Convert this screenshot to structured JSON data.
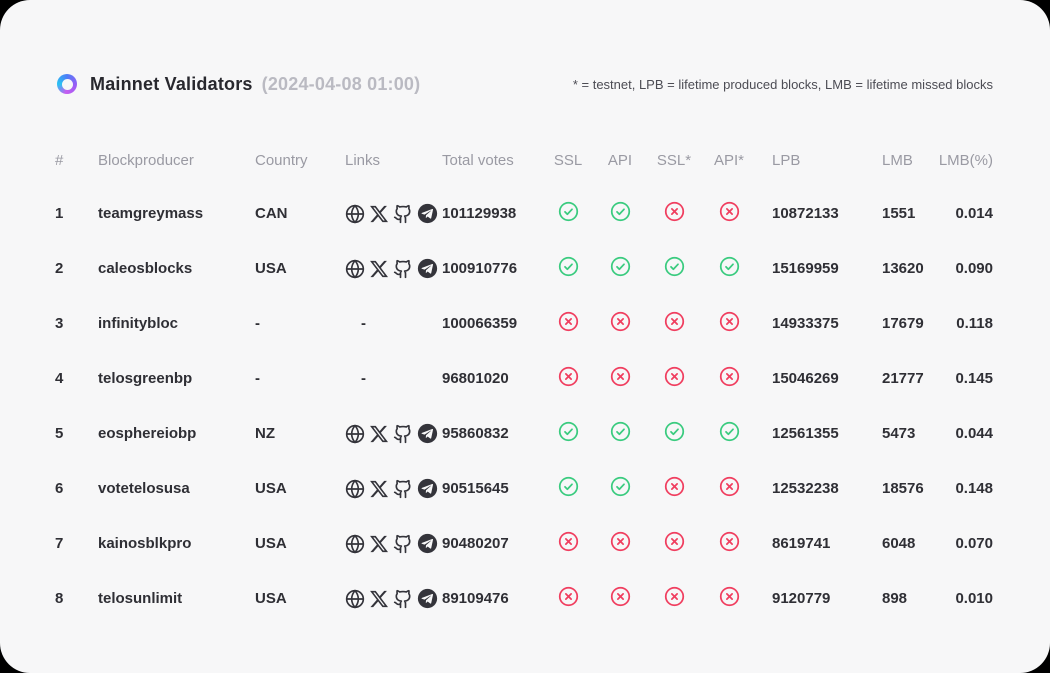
{
  "page": {
    "background": "#000000",
    "card_background": "#f7f7f8"
  },
  "header": {
    "logo_icon": "gradient-ring-icon",
    "title": "Mainnet Validators",
    "timestamp": "(2024-04-08 01:00)",
    "legend": "* = testnet, LPB = lifetime produced blocks, LMB = lifetime missed blocks"
  },
  "table": {
    "columns": [
      "#",
      "Blockproducer",
      "Country",
      "Links",
      "Total votes",
      "SSL",
      "API",
      "SSL*",
      "API*",
      "LPB",
      "LMB",
      "LMB(%)"
    ],
    "link_icons": [
      "globe-icon",
      "x-icon",
      "github-icon",
      "telegram-icon"
    ],
    "status_true_icon": "check-circle-icon",
    "status_false_icon": "cross-circle-icon",
    "links_placeholder": "-",
    "rows": [
      {
        "rank": "1",
        "blockproducer": "teamgreymass",
        "country": "CAN",
        "has_links": true,
        "total_votes": "101129938",
        "ssl": true,
        "api": true,
        "ssl_testnet": false,
        "api_testnet": false,
        "lpb": "10872133",
        "lmb": "1551",
        "lmb_pct": "0.014"
      },
      {
        "rank": "2",
        "blockproducer": "caleosblocks",
        "country": "USA",
        "has_links": true,
        "total_votes": "100910776",
        "ssl": true,
        "api": true,
        "ssl_testnet": true,
        "api_testnet": true,
        "lpb": "15169959",
        "lmb": "13620",
        "lmb_pct": "0.090"
      },
      {
        "rank": "3",
        "blockproducer": "infinitybloc",
        "country": "-",
        "has_links": false,
        "total_votes": "100066359",
        "ssl": false,
        "api": false,
        "ssl_testnet": false,
        "api_testnet": false,
        "lpb": "14933375",
        "lmb": "17679",
        "lmb_pct": "0.118"
      },
      {
        "rank": "4",
        "blockproducer": "telosgreenbp",
        "country": "-",
        "has_links": false,
        "total_votes": "96801020",
        "ssl": false,
        "api": false,
        "ssl_testnet": false,
        "api_testnet": false,
        "lpb": "15046269",
        "lmb": "21777",
        "lmb_pct": "0.145"
      },
      {
        "rank": "5",
        "blockproducer": "eosphereiobp",
        "country": "NZ",
        "has_links": true,
        "total_votes": "95860832",
        "ssl": true,
        "api": true,
        "ssl_testnet": true,
        "api_testnet": true,
        "lpb": "12561355",
        "lmb": "5473",
        "lmb_pct": "0.044"
      },
      {
        "rank": "6",
        "blockproducer": "votetelosusa",
        "country": "USA",
        "has_links": true,
        "total_votes": "90515645",
        "ssl": true,
        "api": true,
        "ssl_testnet": false,
        "api_testnet": false,
        "lpb": "12532238",
        "lmb": "18576",
        "lmb_pct": "0.148"
      },
      {
        "rank": "7",
        "blockproducer": "kainosblkpro",
        "country": "USA",
        "has_links": true,
        "total_votes": "90480207",
        "ssl": false,
        "api": false,
        "ssl_testnet": false,
        "api_testnet": false,
        "lpb": "8619741",
        "lmb": "6048",
        "lmb_pct": "0.070"
      },
      {
        "rank": "8",
        "blockproducer": "telosunlimit",
        "country": "USA",
        "has_links": true,
        "total_votes": "89109476",
        "ssl": false,
        "api": false,
        "ssl_testnet": false,
        "api_testnet": false,
        "lpb": "9120779",
        "lmb": "898",
        "lmb_pct": "0.010"
      }
    ]
  },
  "colors": {
    "pass": "#3acb7f",
    "fail": "#f03e5f",
    "accent_gradient": [
      "#27c3f2",
      "#4e7df7",
      "#9b5cf5",
      "#c65df0"
    ]
  }
}
